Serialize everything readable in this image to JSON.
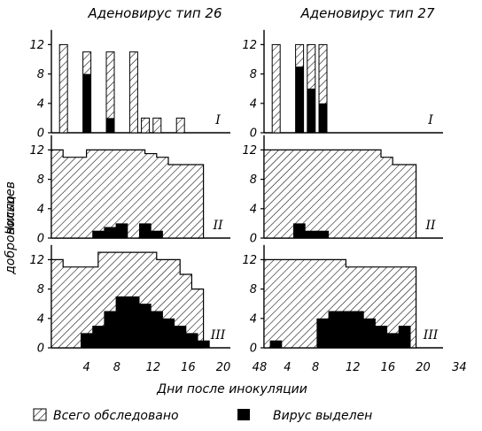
{
  "chart_data": {
    "type": "bar",
    "columns": [
      {
        "title": "Аденовирус тип 26",
        "x_ticks": [
          "4",
          "8",
          "12",
          "16",
          "20",
          "48"
        ]
      },
      {
        "title": "Аденовирус тип 27",
        "x_ticks": [
          "4",
          "8",
          "12",
          "16",
          "20",
          "34",
          "48"
        ]
      }
    ],
    "ylabel_lines": [
      "Число",
      "добровольцев"
    ],
    "xlabel": "Дни после инокуляции",
    "y_ticks": [
      "0",
      "4",
      "8",
      "12"
    ],
    "ylim": [
      0,
      14
    ],
    "legend": {
      "total": "Всего обследовано",
      "isolated": "Вирус выделен"
    },
    "panels": [
      {
        "row": "I",
        "column": 0,
        "kind": "bars",
        "total": [
          [
            1,
            12
          ],
          [
            3,
            11
          ],
          [
            5,
            11
          ],
          [
            7,
            11
          ],
          [
            8,
            2
          ],
          [
            9,
            2
          ],
          [
            11,
            2
          ]
        ],
        "isolated": [
          [
            3,
            8
          ],
          [
            5,
            2
          ],
          [
            7,
            0
          ]
        ]
      },
      {
        "row": "I",
        "column": 1,
        "kind": "bars",
        "total": [
          [
            1,
            12
          ],
          [
            3,
            12
          ],
          [
            4,
            12
          ],
          [
            5,
            12
          ]
        ],
        "isolated": [
          [
            3,
            9
          ],
          [
            4,
            6
          ],
          [
            5,
            4
          ]
        ]
      },
      {
        "row": "II",
        "column": 0,
        "kind": "profile",
        "total": [
          [
            0,
            12
          ],
          [
            1,
            11
          ],
          [
            3,
            12
          ],
          [
            6,
            12
          ],
          [
            8,
            11.5
          ],
          [
            9,
            11
          ],
          [
            10,
            10
          ],
          [
            11,
            10
          ],
          [
            12,
            10
          ],
          [
            13,
            0
          ]
        ],
        "isolated": [
          [
            4,
            1
          ],
          [
            5,
            1.5
          ],
          [
            6,
            2
          ],
          [
            8,
            2
          ],
          [
            9,
            1
          ]
        ]
      },
      {
        "row": "II",
        "column": 1,
        "kind": "profile",
        "total": [
          [
            0,
            12
          ],
          [
            8,
            12
          ],
          [
            10,
            11
          ],
          [
            11,
            10
          ],
          [
            12,
            10
          ],
          [
            13,
            0
          ]
        ],
        "isolated": [
          [
            3,
            2
          ],
          [
            4,
            1
          ],
          [
            5,
            1
          ]
        ]
      },
      {
        "row": "III",
        "column": 0,
        "kind": "profile",
        "total": [
          [
            0,
            12
          ],
          [
            1,
            11
          ],
          [
            4,
            13
          ],
          [
            7,
            13
          ],
          [
            9,
            12
          ],
          [
            11,
            10
          ],
          [
            12,
            8
          ],
          [
            13,
            0
          ]
        ],
        "isolated": [
          [
            3,
            2
          ],
          [
            4,
            3
          ],
          [
            5,
            5
          ],
          [
            6,
            7
          ],
          [
            7,
            7
          ],
          [
            8,
            6
          ],
          [
            9,
            5
          ],
          [
            10,
            4
          ],
          [
            11,
            3
          ],
          [
            12,
            2
          ],
          [
            13,
            1
          ]
        ]
      },
      {
        "row": "III",
        "column": 1,
        "kind": "profile",
        "total": [
          [
            0,
            12
          ],
          [
            4,
            12
          ],
          [
            7,
            11
          ],
          [
            12,
            11
          ],
          [
            13,
            9
          ]
        ],
        "isolated": [
          [
            1,
            1
          ],
          [
            5,
            4
          ],
          [
            6,
            5
          ],
          [
            7,
            5
          ],
          [
            8,
            5
          ],
          [
            9,
            4
          ],
          [
            10,
            3
          ],
          [
            11,
            2
          ],
          [
            12,
            3
          ]
        ]
      }
    ]
  }
}
